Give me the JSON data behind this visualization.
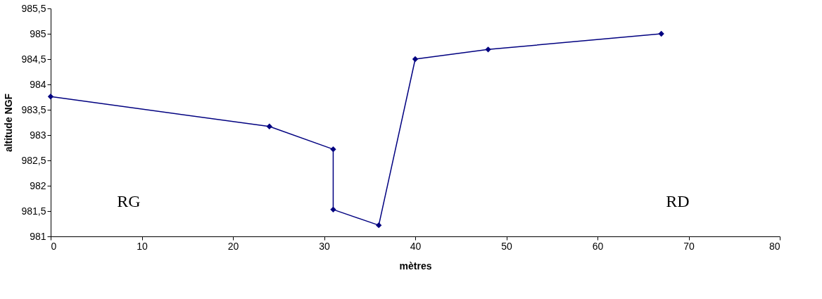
{
  "chart_data": {
    "type": "line",
    "xlabel": "mètres",
    "ylabel": "altitude NGF",
    "x": [
      0,
      24,
      31,
      31,
      36,
      40,
      48,
      67
    ],
    "series": [
      {
        "color": "#000080",
        "values": [
          983.76,
          983.17,
          982.72,
          981.53,
          981.22,
          984.5,
          984.69,
          985.0
        ]
      }
    ],
    "marker": "diamond",
    "line_style": "solid",
    "grid": false,
    "xlim": [
      0,
      80
    ],
    "xticks": [
      0,
      10,
      20,
      30,
      40,
      50,
      60,
      70,
      80
    ],
    "ylim": [
      981,
      985.5
    ],
    "yticks": [
      981,
      {
        "value": 981.5,
        "label": "981,5"
      },
      982,
      {
        "value": 982.5,
        "label": "982,5"
      },
      983,
      {
        "value": 983.5,
        "label": "983,5"
      },
      984,
      {
        "value": 984.5,
        "label": "984,5"
      },
      985,
      {
        "value": 985.5,
        "label": "985,5"
      }
    ],
    "annotations": [
      "RG",
      "RD"
    ]
  }
}
